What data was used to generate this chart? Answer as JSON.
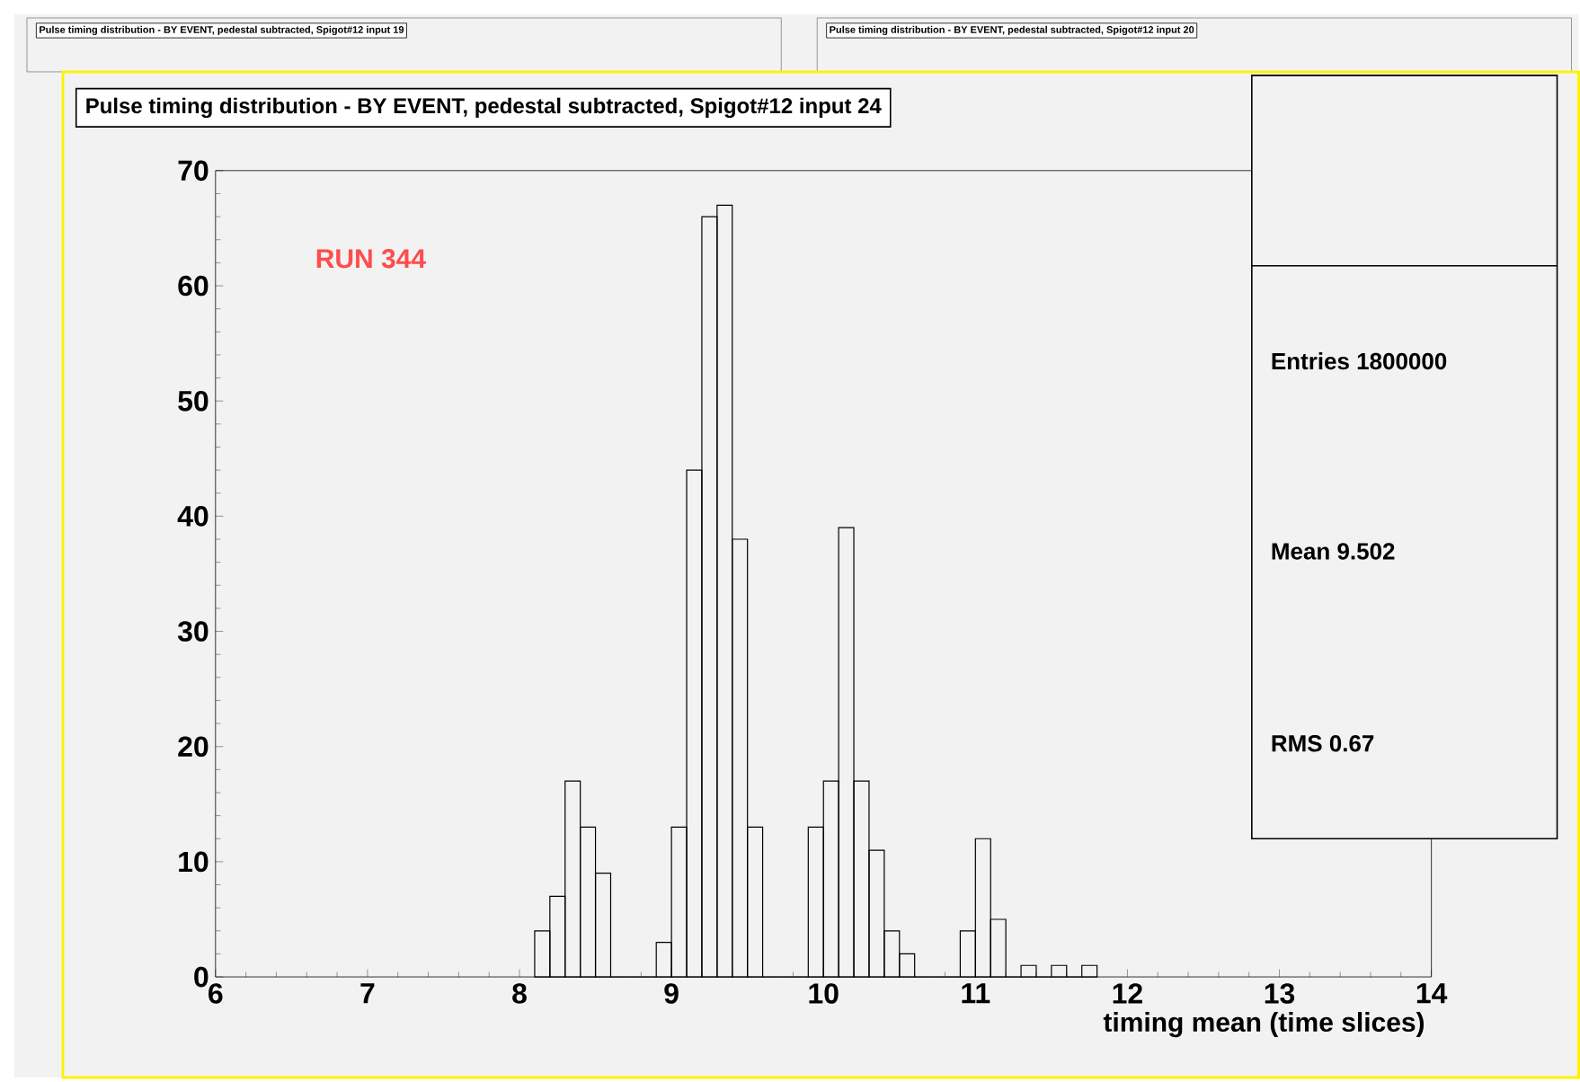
{
  "chart_data": {
    "type": "histogram",
    "title": "Pulse timing distribution - BY EVENT, pedestal subtracted, Spigot#12 input 24",
    "xlabel": "timing mean (time slices)",
    "bins": [
      8.1,
      8.2,
      8.3,
      8.4,
      8.5,
      8.6,
      8.7,
      8.8,
      8.9,
      9.0,
      9.1,
      9.2,
      9.3,
      9.4,
      9.5,
      9.6,
      9.7,
      9.8,
      9.9,
      10.0,
      10.1,
      10.2,
      10.3,
      10.4,
      10.5,
      10.6,
      10.7,
      10.8,
      10.9,
      11.0,
      11.1,
      11.2,
      11.3,
      11.4,
      11.5,
      11.6,
      11.7,
      11.8
    ],
    "values": [
      4,
      7,
      17,
      13,
      9,
      0,
      0,
      0,
      3,
      13,
      44,
      66,
      67,
      38,
      13,
      0,
      0,
      0,
      13,
      17,
      39,
      17,
      11,
      4,
      2,
      0,
      0,
      0,
      4,
      12,
      5,
      0,
      1,
      0,
      1,
      0,
      1
    ],
    "color": "#000000",
    "xlim": [
      6,
      14
    ],
    "xticks": [
      6,
      7,
      8,
      9,
      10,
      11,
      12,
      13,
      14
    ],
    "ylim": [
      0,
      70
    ],
    "yticks": [
      0,
      10,
      20,
      30,
      40,
      50,
      60,
      70
    ],
    "annotations": [
      "RUN 344",
      "Entries 1800000",
      "Mean 9.502",
      "RMS 0.67",
      "Pulse timing distribution - BY EVENT, pedestal subtracted, Spigot#12 input 19",
      "Pulse timing distribution - BY EVENT, pedestal subtracted, Spigot#12 input 20"
    ]
  }
}
